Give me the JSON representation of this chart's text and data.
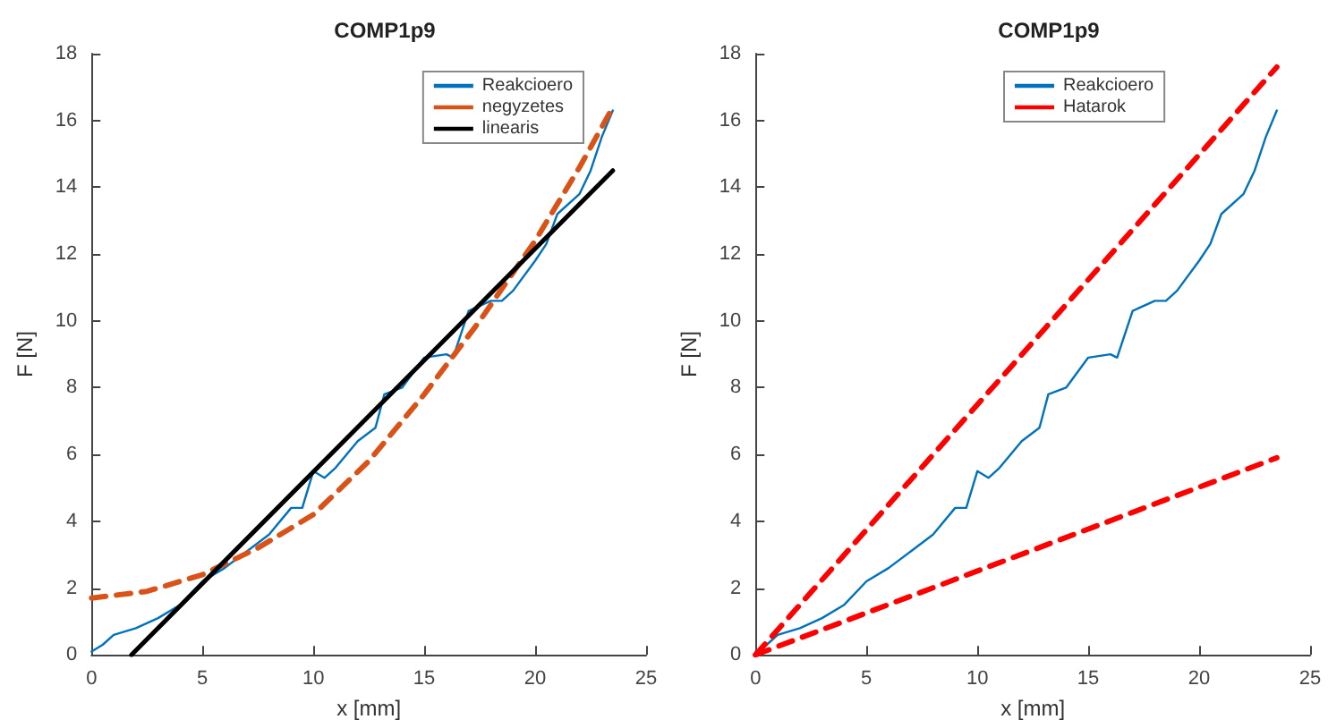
{
  "chart_data": [
    {
      "type": "line",
      "title": "COMP1p9",
      "xlabel": "x [mm]",
      "ylabel": "F [N]",
      "xlim": [
        0,
        25
      ],
      "xticks": [
        0,
        5,
        10,
        15,
        20,
        25
      ],
      "ylim": [
        0,
        18
      ],
      "yticks": [
        0,
        2,
        4,
        6,
        8,
        10,
        12,
        14,
        16,
        18
      ],
      "grid": false,
      "legend": "top right",
      "marker": "none",
      "series": [
        {
          "name": "Reakcioero",
          "color": "#0072bd",
          "line_style": "solid",
          "x": [
            0,
            0.5,
            1,
            2,
            3,
            4,
            5,
            6,
            7,
            8,
            9,
            9.5,
            10,
            10.5,
            11,
            12,
            12.8,
            13.2,
            14,
            15,
            16,
            16.3,
            17,
            18,
            18.5,
            19,
            20,
            20.5,
            21,
            22,
            22.5,
            23,
            23.5
          ],
          "values": [
            0.1,
            0.3,
            0.6,
            0.8,
            1.1,
            1.5,
            2.2,
            2.6,
            3.1,
            3.6,
            4.4,
            4.4,
            5.5,
            5.3,
            5.6,
            6.4,
            6.8,
            7.8,
            8,
            8.9,
            9,
            8.9,
            10.3,
            10.6,
            10.6,
            10.9,
            11.8,
            12.3,
            13.2,
            13.8,
            14.5,
            15.5,
            16.3
          ]
        },
        {
          "name": "negyzetes",
          "color": "#d95319",
          "line_style": "dashed",
          "x": [
            0,
            2.5,
            5,
            7.5,
            10,
            12.5,
            15,
            17.5,
            20,
            22,
            23.5
          ],
          "values": [
            1.7,
            1.9,
            2.4,
            3.2,
            4.2,
            5.8,
            7.8,
            10,
            12.4,
            14.6,
            16.4
          ]
        },
        {
          "name": "linearis",
          "color": "#000000",
          "line_style": "solid",
          "x": [
            1.8,
            23.5
          ],
          "values": [
            0,
            14.5
          ]
        }
      ]
    },
    {
      "type": "line",
      "title": "COMP1p9",
      "xlabel": "x [mm]",
      "ylabel": "F [N]",
      "xlim": [
        0,
        25
      ],
      "xticks": [
        0,
        5,
        10,
        15,
        20,
        25
      ],
      "ylim": [
        0,
        18
      ],
      "yticks": [
        0,
        2,
        4,
        6,
        8,
        10,
        12,
        14,
        16,
        18
      ],
      "grid": false,
      "legend": "top",
      "marker": "none",
      "series": [
        {
          "name": "Reakcioero",
          "color": "#0072bd",
          "line_style": "solid",
          "x": [
            0,
            0.5,
            1,
            2,
            3,
            4,
            5,
            6,
            7,
            8,
            9,
            9.5,
            10,
            10.5,
            11,
            12,
            12.8,
            13.2,
            14,
            15,
            16,
            16.3,
            17,
            18,
            18.5,
            19,
            20,
            20.5,
            21,
            22,
            22.5,
            23,
            23.5
          ],
          "values": [
            0.1,
            0.3,
            0.6,
            0.8,
            1.1,
            1.5,
            2.2,
            2.6,
            3.1,
            3.6,
            4.4,
            4.4,
            5.5,
            5.3,
            5.6,
            6.4,
            6.8,
            7.8,
            8,
            8.9,
            9,
            8.9,
            10.3,
            10.6,
            10.6,
            10.9,
            11.8,
            12.3,
            13.2,
            13.8,
            14.5,
            15.5,
            16.3
          ]
        },
        {
          "name": "Hatarok",
          "color": "#ff0000",
          "line_style": "dashed",
          "x": [
            0,
            23.5
          ],
          "values": [
            0,
            17.6
          ]
        },
        {
          "color": "#ff0000",
          "line_style": "dashed",
          "x": [
            0,
            23.5
          ],
          "values": [
            0,
            5.9
          ]
        }
      ]
    }
  ]
}
